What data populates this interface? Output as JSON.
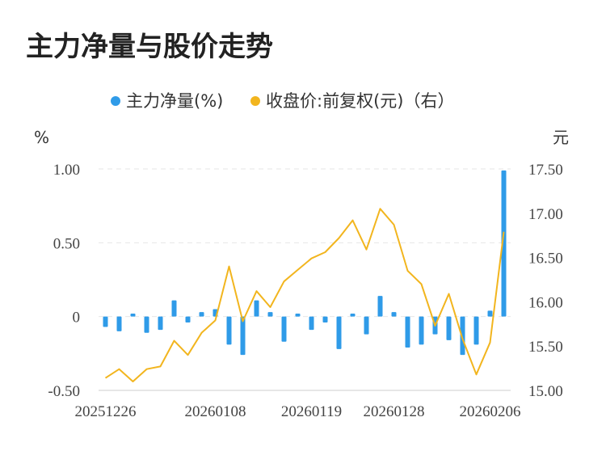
{
  "title": "主力净量与股价走势",
  "legend": {
    "bar_label": "主力净量(%)",
    "line_label": "收盘价:前复权(元)（右）"
  },
  "axes": {
    "left_unit": "%",
    "right_unit": "元",
    "left_ticks": [
      "1.00",
      "0.50",
      "0",
      "-0.50"
    ],
    "right_ticks": [
      "17.50",
      "17.00",
      "16.50",
      "16.00",
      "15.50",
      "15.00"
    ],
    "x_ticks": [
      "20251226",
      "20260108",
      "20260119",
      "20260128",
      "20260206"
    ]
  },
  "colors": {
    "bar": "#2f9be8",
    "line": "#f2b51e",
    "grid": "#e6e6e6"
  },
  "chart_data": {
    "type": "bar+line",
    "title": "主力净量与股价走势",
    "left_axis": {
      "unit": "%",
      "ylim": [
        -0.5,
        1.0
      ]
    },
    "right_axis": {
      "unit": "元",
      "ylim": [
        15.0,
        17.5
      ]
    },
    "x_tick_labels": [
      "20251226",
      "20260108",
      "20260119",
      "20260128",
      "20260206"
    ],
    "series": [
      {
        "name": "主力净量(%)",
        "type": "bar",
        "axis": "left",
        "values": [
          -0.07,
          -0.1,
          0.02,
          -0.11,
          -0.09,
          0.11,
          -0.04,
          0.03,
          0.05,
          -0.19,
          -0.26,
          0.11,
          0.03,
          -0.17,
          0.02,
          -0.09,
          -0.04,
          -0.22,
          0.02,
          -0.12,
          0.14,
          0.03,
          -0.21,
          -0.19,
          -0.12,
          -0.16,
          -0.26,
          -0.19,
          0.04,
          0.99
        ]
      },
      {
        "name": "收盘价:前复权(元)（右）",
        "type": "line",
        "axis": "right",
        "values": [
          15.14,
          15.24,
          15.1,
          15.24,
          15.27,
          15.56,
          15.4,
          15.65,
          15.79,
          16.4,
          15.78,
          16.12,
          15.94,
          16.23,
          16.36,
          16.49,
          16.56,
          16.72,
          16.92,
          16.59,
          17.05,
          16.87,
          16.35,
          16.2,
          15.73,
          16.09,
          15.58,
          15.18,
          15.54,
          16.79
        ]
      }
    ]
  }
}
